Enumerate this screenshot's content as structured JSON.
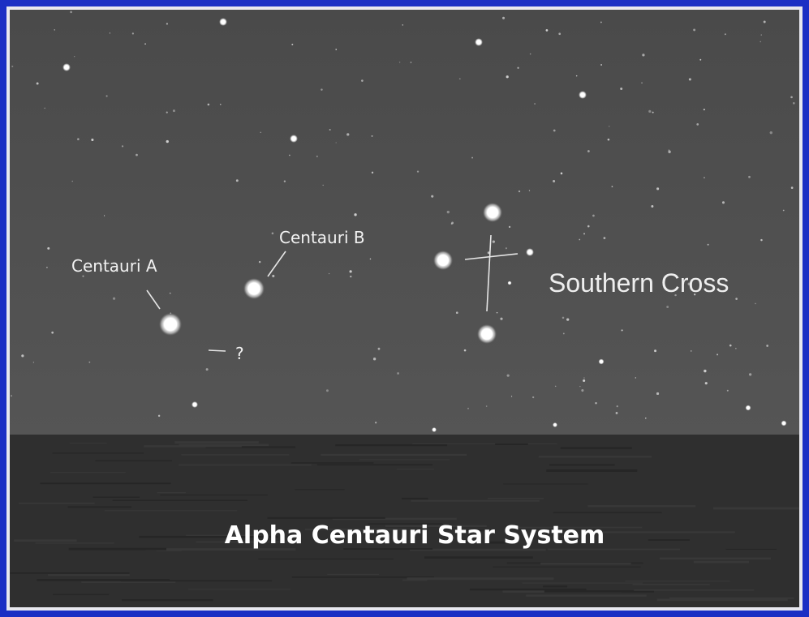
{
  "labels": {
    "centauri_a": "Centauri A",
    "centauri_b": "Centauri B",
    "unknown": "?",
    "southern_cross": "Southern Cross"
  },
  "caption": "Alpha Centauri Star System"
}
